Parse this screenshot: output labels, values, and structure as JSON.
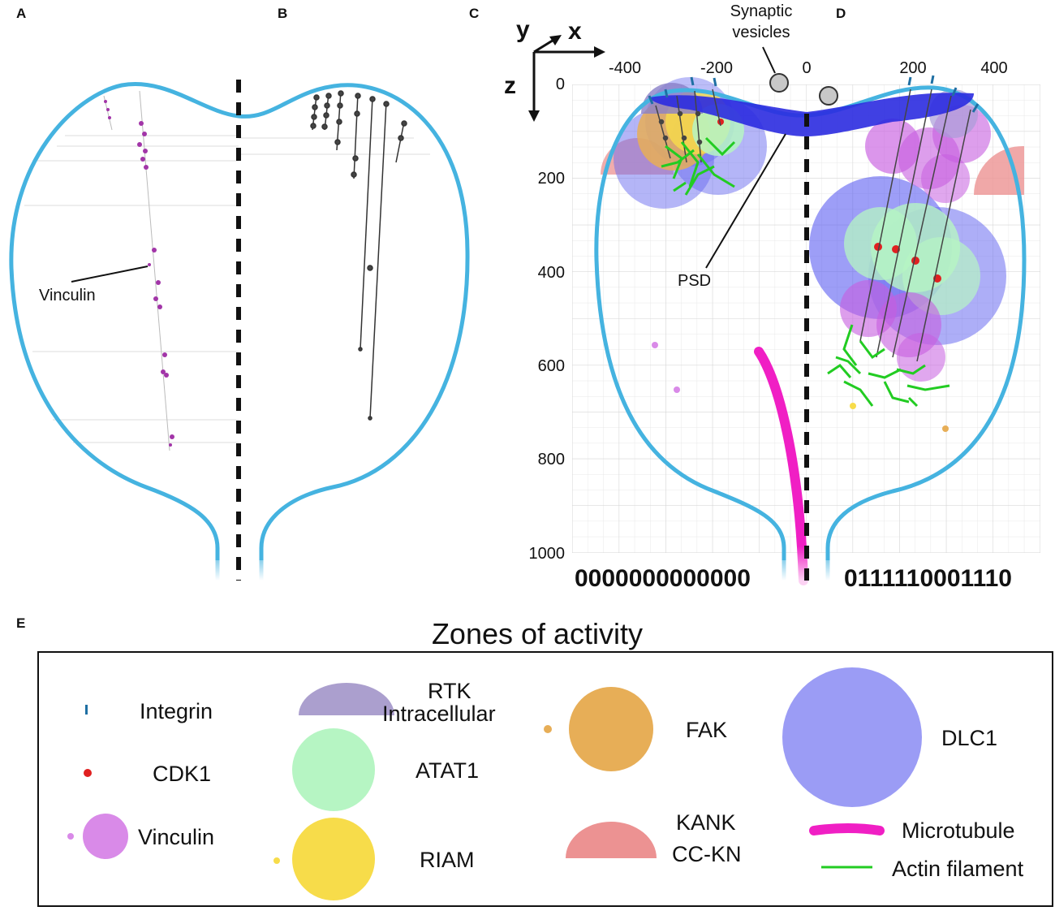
{
  "panels": {
    "a": {
      "letter": "A",
      "vinculin_label": "Vinculin"
    },
    "b": {
      "letter": "B"
    },
    "c": {
      "letter": "C",
      "psd_label": "PSD",
      "binary_code": "0000000000000"
    },
    "d": {
      "letter": "D",
      "binary_code": "0111110001110"
    },
    "e": {
      "letter": "E"
    }
  },
  "axes": {
    "x_label": "x",
    "y_label": "y",
    "z_label": "z",
    "x_ticks": [
      "-400",
      "-200",
      "0",
      "200",
      "400"
    ],
    "z_ticks": [
      "0",
      "200",
      "400",
      "600",
      "800",
      "1000"
    ]
  },
  "annotations": {
    "synaptic_line1": "Synaptic",
    "synaptic_line2": "vesicles"
  },
  "legend": {
    "title": "Zones of activity",
    "items": {
      "integrin": {
        "label": "Integrin",
        "color": "#1f6fa3"
      },
      "cdk1": {
        "label": "CDK1",
        "color": "#e02020"
      },
      "vinculin": {
        "label": "Vinculin",
        "color": "#d98ae8"
      },
      "rtk": {
        "label_line1": "RTK",
        "label_line2": "Intracellular",
        "color": "#ab9fce"
      },
      "atat1": {
        "label": "ATAT1",
        "color": "#b6f5c3"
      },
      "riam": {
        "label": "RIAM",
        "color": "#f7dc4a"
      },
      "fak": {
        "label": "FAK",
        "color": "#e7ae57"
      },
      "kank": {
        "label_line1": "KANK",
        "label_line2": "CC-KN",
        "color": "#ec9292"
      },
      "dlc1": {
        "label": "DLC1",
        "color": "#9b9cf5"
      },
      "microtubule": {
        "label": "Microtubule",
        "color": "#f01fc4"
      },
      "actin": {
        "label": "Actin filament",
        "color": "#22cc22"
      }
    }
  },
  "colors": {
    "membrane": "#45b3e0",
    "psd": "#2b2be0",
    "grid": "#e6e6e6"
  }
}
